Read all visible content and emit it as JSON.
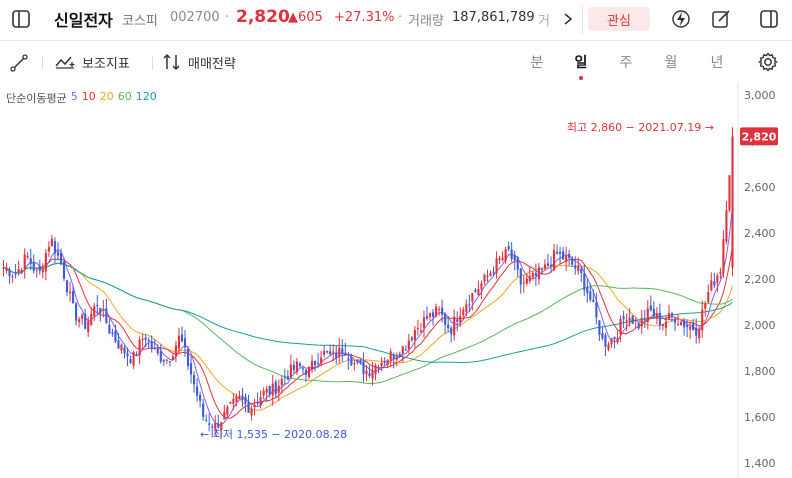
{
  "header": {
    "stock_name": "신일전자",
    "market": "코스피",
    "code": "002700",
    "price": "2,820",
    "change": "▲605",
    "change_pct": "+27.31%",
    "volume_label": "거래량",
    "volume": "187,861,789",
    "amount_label": "거래대금",
    "favorite_label": "관심"
  },
  "toolbar": {
    "indicator_label": "보조지표",
    "strategy_label": "매매전략",
    "periods": [
      "분",
      "일",
      "주",
      "월",
      "년"
    ],
    "active_period": "일"
  },
  "ma_legend": {
    "title": "단순이동평균",
    "items": [
      {
        "label": "5",
        "color": "#8a5cf6"
      },
      {
        "label": "10",
        "color": "#e8323c"
      },
      {
        "label": "20",
        "color": "#f5a623"
      },
      {
        "label": "60",
        "color": "#5cb85c"
      },
      {
        "label": "120",
        "color": "#1a9e9e"
      }
    ]
  },
  "chart_data": {
    "type": "candlestick",
    "y_axis_labels": [
      "3,000",
      "2,800",
      "2,600",
      "2,400",
      "2,200",
      "2,000",
      "1,800",
      "1,600",
      "1,400"
    ],
    "ylim": [
      1400,
      3000
    ],
    "current_price_label": "2,820",
    "current_price": 2820,
    "high_annotation": "최고 2,860 − 2021.07.19 →",
    "high_value": 2860,
    "low_annotation": "← 최저 1,535 − 2020.08.28",
    "low_value": 1535,
    "colors": {
      "up": "#e0323c",
      "down": "#3b5bdb"
    },
    "series_ma": [
      {
        "name": "5",
        "color": "#8a5cf6"
      },
      {
        "name": "10",
        "color": "#e8323c"
      },
      {
        "name": "20",
        "color": "#f5a623"
      },
      {
        "name": "60",
        "color": "#5cb85c"
      },
      {
        "name": "120",
        "color": "#1a9e9e"
      }
    ],
    "close_path_keypoints": [
      2250,
      2220,
      2300,
      2210,
      2380,
      2250,
      2050,
      2000,
      2100,
      1980,
      1900,
      1850,
      1960,
      1870,
      1850,
      1950,
      1780,
      1600,
      1560,
      1620,
      1680,
      1640,
      1700,
      1720,
      1780,
      1820,
      1800,
      1880,
      1860,
      1900,
      1820,
      1800,
      1840,
      1870,
      1900,
      1980,
      2030,
      2060,
      1980,
      2080,
      2140,
      2200,
      2270,
      2320,
      2180,
      2200,
      2240,
      2310,
      2280,
      2230,
      2100,
      1920,
      1950,
      2050,
      2000,
      2060,
      2010,
      2040,
      2000,
      1980,
      2150,
      2250,
      2820
    ]
  }
}
